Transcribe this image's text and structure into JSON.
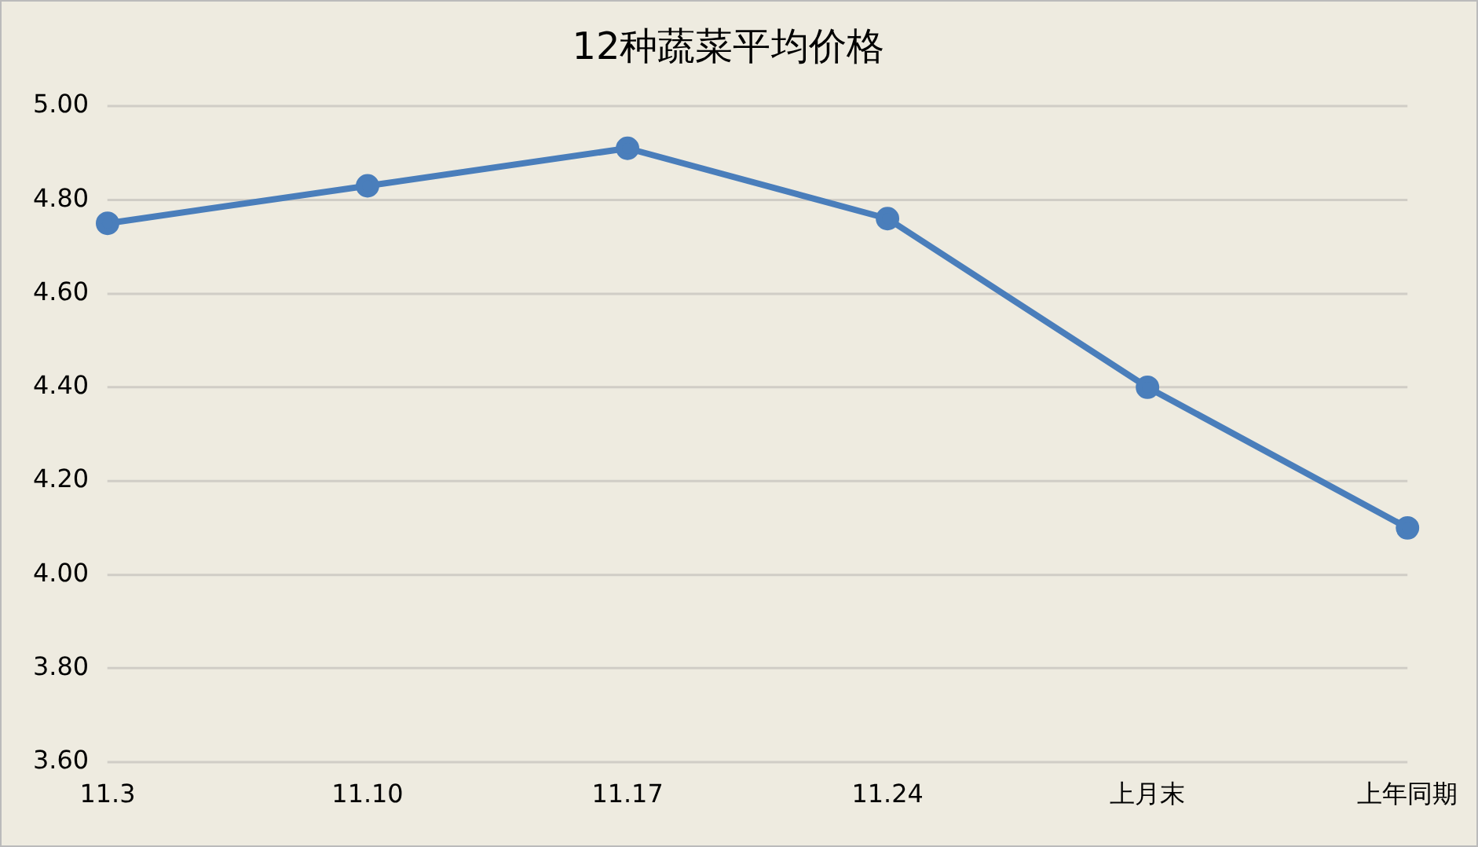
{
  "chart_data": {
    "type": "line",
    "title": "12种蔬菜平均价格",
    "categories": [
      "11.3",
      "11.10",
      "11.17",
      "11.24",
      "上月末",
      "上年同期"
    ],
    "series": [
      {
        "color": "#4a7ebb",
        "values": [
          4.75,
          4.83,
          4.91,
          4.76,
          4.4,
          4.1
        ]
      }
    ],
    "ylim": [
      3.6,
      5.0
    ],
    "yticks": [
      {
        "value": 3.6,
        "label": "3.60"
      },
      {
        "value": 3.8,
        "label": "3.80"
      },
      {
        "value": 4.0,
        "label": "4.00"
      },
      {
        "value": 4.2,
        "label": "4.20"
      },
      {
        "value": 4.4,
        "label": "4.40"
      },
      {
        "value": 4.6,
        "label": "4.60"
      },
      {
        "value": 4.8,
        "label": "4.80"
      },
      {
        "value": 5.0,
        "label": "5.00"
      }
    ],
    "grid": "y",
    "legend": false,
    "marker": "circle",
    "line_style": "solid"
  }
}
